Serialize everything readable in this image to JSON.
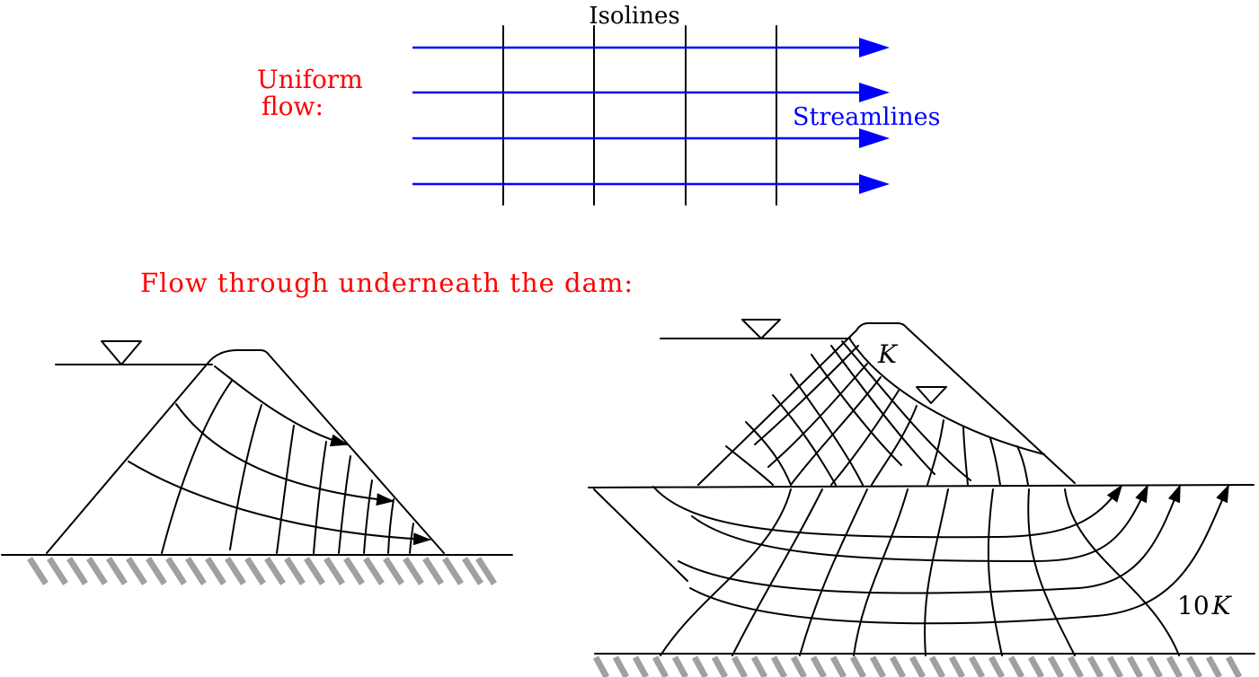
{
  "uniform_flow": {
    "isolines_label": "Isolines",
    "title_line1": "Uniform",
    "title_line2": "flow:",
    "streamlines_label": "Streamlines"
  },
  "dam_section": {
    "title": "Flow through underneath the dam:",
    "label_k": "K",
    "label_10k_num": "10",
    "label_10k_var": "K"
  },
  "colors": {
    "red_text": "#ff0000",
    "streamline_blue": "#0000ff",
    "ground_hatch": "#a0a0a0",
    "line": "#000000"
  }
}
